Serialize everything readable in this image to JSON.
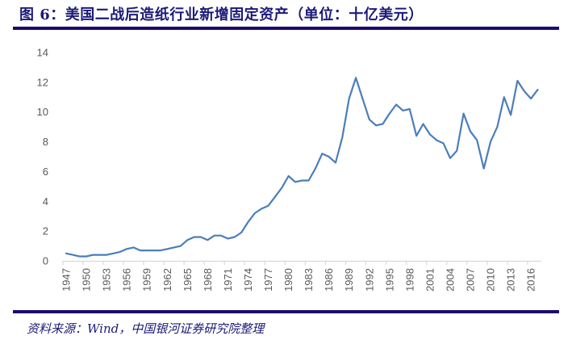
{
  "figure": {
    "title": "图 6：美国二战后造纸行业新增固定资产（单位：十亿美元）",
    "source": "资料来源：Wind，中国银河证券研究院整理",
    "colors": {
      "line": "#4a7ebb",
      "title": "#1b1a78",
      "rule": "#1b0a6e",
      "axis": "#d9d9d9",
      "tick_label": "#595959"
    }
  },
  "chart_data": {
    "type": "line",
    "title": "美国二战后造纸行业新增固定资产（单位：十亿美元）",
    "xlabel": "",
    "ylabel": "十亿美元",
    "ylim": [
      0,
      14
    ],
    "yticks": [
      0,
      2,
      4,
      6,
      8,
      10,
      12,
      14
    ],
    "grid": false,
    "legend": null,
    "xtick_labels": [
      "1947",
      "1950",
      "1953",
      "1956",
      "1959",
      "1962",
      "1965",
      "1968",
      "1971",
      "1974",
      "1977",
      "1980",
      "1983",
      "1986",
      "1989",
      "1992",
      "1995",
      "1998",
      "2001",
      "2004",
      "2007",
      "2010",
      "2013",
      "2016"
    ],
    "x": [
      1947,
      1948,
      1949,
      1950,
      1951,
      1952,
      1953,
      1954,
      1955,
      1956,
      1957,
      1958,
      1959,
      1960,
      1961,
      1962,
      1963,
      1964,
      1965,
      1966,
      1967,
      1968,
      1969,
      1970,
      1971,
      1972,
      1973,
      1974,
      1975,
      1976,
      1977,
      1978,
      1979,
      1980,
      1981,
      1982,
      1983,
      1984,
      1985,
      1986,
      1987,
      1988,
      1989,
      1990,
      1991,
      1992,
      1993,
      1994,
      1995,
      1996,
      1997,
      1998,
      1999,
      2000,
      2001,
      2002,
      2003,
      2004,
      2005,
      2006,
      2007,
      2008,
      2009,
      2010,
      2011,
      2012,
      2013,
      2014,
      2015,
      2016,
      2017
    ],
    "series": [
      {
        "name": "新增固定资产",
        "values": [
          0.5,
          0.4,
          0.3,
          0.3,
          0.4,
          0.4,
          0.4,
          0.5,
          0.6,
          0.8,
          0.9,
          0.7,
          0.7,
          0.7,
          0.7,
          0.8,
          0.9,
          1.0,
          1.4,
          1.6,
          1.6,
          1.4,
          1.7,
          1.7,
          1.5,
          1.6,
          1.9,
          2.6,
          3.2,
          3.5,
          3.7,
          4.3,
          4.9,
          5.7,
          5.3,
          5.4,
          5.4,
          6.2,
          7.2,
          7.0,
          6.6,
          8.3,
          10.9,
          12.3,
          10.9,
          9.5,
          9.1,
          9.2,
          9.9,
          10.5,
          10.1,
          10.2,
          8.4,
          9.2,
          8.5,
          8.1,
          7.9,
          6.9,
          7.4,
          9.9,
          8.7,
          8.1,
          6.2,
          8.0,
          9.0,
          11.0,
          9.8,
          12.1,
          11.4,
          10.9,
          11.5
        ]
      }
    ]
  }
}
